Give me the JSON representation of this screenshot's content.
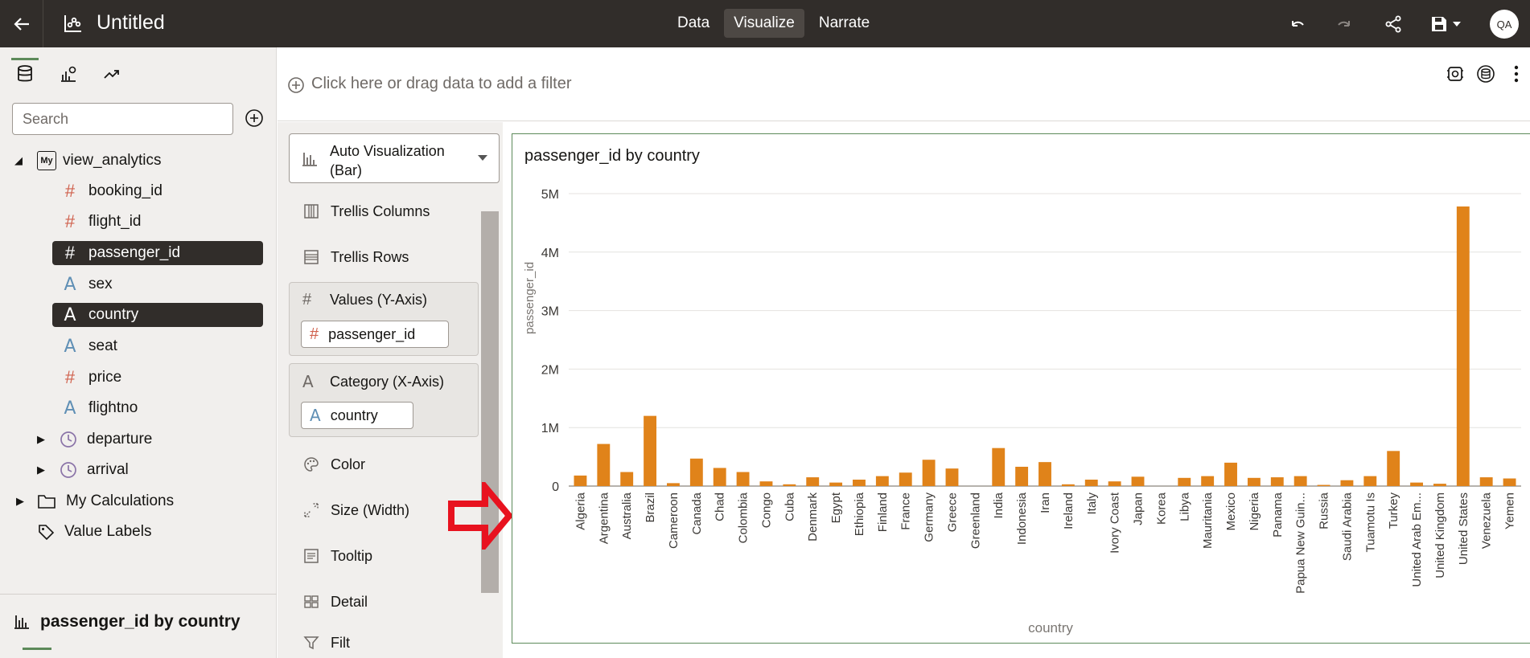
{
  "app": {
    "title": "Untitled",
    "tabs": [
      "Data",
      "Visualize",
      "Narrate"
    ],
    "active_tab": "Visualize",
    "avatar_initials": "QA"
  },
  "left_panel": {
    "search_placeholder": "Search",
    "dataset": "view_analytics",
    "dataset_badge": "My",
    "fields": [
      {
        "label": "booking_id",
        "type": "number"
      },
      {
        "label": "flight_id",
        "type": "number"
      },
      {
        "label": "passenger_id",
        "type": "number",
        "selected": true
      },
      {
        "label": "sex",
        "type": "text"
      },
      {
        "label": "country",
        "type": "text",
        "selected": true
      },
      {
        "label": "seat",
        "type": "text"
      },
      {
        "label": "price",
        "type": "number"
      },
      {
        "label": "flightno",
        "type": "text"
      },
      {
        "label": "departure",
        "type": "time"
      },
      {
        "label": "arrival",
        "type": "time"
      }
    ],
    "my_calculations": "My Calculations",
    "value_labels": "Value Labels",
    "bottom_viz_label": "passenger_id by country"
  },
  "filter_bar": {
    "placeholder": "Click here or drag data to add a filter"
  },
  "grammar": {
    "viz_type_line1": "Auto Visualization",
    "viz_type_line2": "(Bar)",
    "trellis_columns": "Trellis Columns",
    "trellis_rows": "Trellis Rows",
    "values_title": "Values (Y-Axis)",
    "values_pill": "passenger_id",
    "category_title": "Category (X-Axis)",
    "category_pill": "country",
    "color": "Color",
    "size": "Size (Width)",
    "tooltip": "Tooltip",
    "detail": "Detail",
    "filter_partial": "Filt"
  },
  "chart_data": {
    "type": "bar",
    "title": "passenger_id by country",
    "xlabel": "country",
    "ylabel": "passenger_id",
    "ylim": [
      0,
      5000000
    ],
    "yticks": [
      "0",
      "1M",
      "2M",
      "3M",
      "4M",
      "5M"
    ],
    "bar_color": "#e0831a",
    "grid": true,
    "categories": [
      "Algeria",
      "Argentina",
      "Australia",
      "Brazil",
      "Cameroon",
      "Canada",
      "Chad",
      "Colombia",
      "Congo",
      "Cuba",
      "Denmark",
      "Egypt",
      "Ethiopia",
      "Finland",
      "France",
      "Germany",
      "Greece",
      "Greenland",
      "India",
      "Indonesia",
      "Iran",
      "Ireland",
      "Italy",
      "Ivory Coast",
      "Japan",
      "Korea",
      "Libya",
      "Mauritania",
      "Mexico",
      "Nigeria",
      "Panama",
      "Papua New Guin...",
      "Russia",
      "Saudi Arabia",
      "Tuamotu Is",
      "Turkey",
      "United Arab Em...",
      "United Kingdom",
      "United States",
      "Venezuela",
      "Yemen"
    ],
    "values": [
      180000,
      720000,
      240000,
      1200000,
      50000,
      470000,
      310000,
      240000,
      80000,
      30000,
      150000,
      60000,
      110000,
      170000,
      230000,
      450000,
      300000,
      0,
      650000,
      330000,
      410000,
      30000,
      110000,
      80000,
      160000,
      0,
      140000,
      170000,
      400000,
      140000,
      150000,
      170000,
      20000,
      100000,
      170000,
      600000,
      60000,
      40000,
      4780000,
      150000,
      130000
    ]
  },
  "colors": {
    "topbar": "#312d2a",
    "accent_green": "#5d8a5a",
    "number_field": "#d0614d",
    "text_field": "#5f8fb5",
    "arrow_red": "#e8121f"
  }
}
